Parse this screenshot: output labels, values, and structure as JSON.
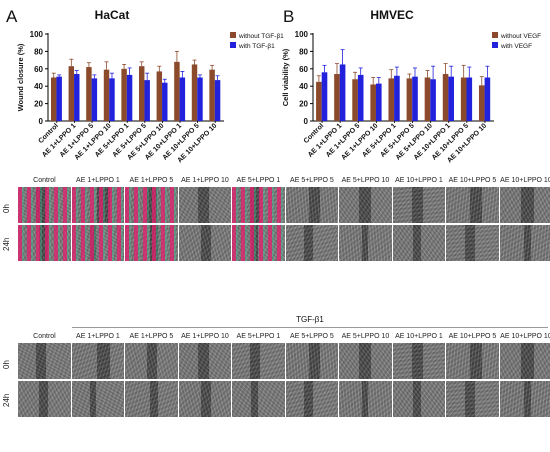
{
  "panels": {
    "A": {
      "letter": "A"
    },
    "B": {
      "letter": "B"
    }
  },
  "chart_data": [
    {
      "type": "bar",
      "title": "HaCat",
      "ylabel": "Wound closure (%)",
      "xlabel": "",
      "ylim": [
        0,
        100
      ],
      "yticks": [
        0,
        20,
        40,
        60,
        80,
        100
      ],
      "categories": [
        "Control",
        "AE 1+LPPO 1",
        "AE 1+LPPO 5",
        "AE 1+LPPO 10",
        "AE 5+LPPO 1",
        "AE 5+LPPO 5",
        "AE 5+LPPO 10",
        "AE 10+LPPO 1",
        "AE 10+LPPO 5",
        "AE 10+LPPO 10"
      ],
      "series": [
        {
          "name": "without TGF-β1",
          "color": "#8B4A2B",
          "values": [
            50,
            63,
            62,
            59,
            60,
            63,
            57,
            68,
            65,
            59
          ],
          "errors": [
            5,
            8,
            5,
            9,
            5,
            5,
            6,
            12,
            5,
            5
          ]
        },
        {
          "name": "with TGF-β1",
          "color": "#2222DD",
          "values": [
            51,
            54,
            49,
            49,
            53,
            47,
            44,
            50,
            50,
            47
          ],
          "errors": [
            2,
            4,
            4,
            6,
            8,
            8,
            4,
            7,
            3,
            5
          ]
        }
      ],
      "legend_position": "top-right",
      "grid": false
    },
    {
      "type": "bar",
      "title": "HMVEC",
      "ylabel": "Cell viability (%)",
      "xlabel": "",
      "ylim": [
        0,
        100
      ],
      "yticks": [
        0,
        20,
        40,
        60,
        80,
        100
      ],
      "categories": [
        "Control",
        "AE 1+LPPO 1",
        "AE 1+LPPO 5",
        "AE 1+LPPO 10",
        "AE 5+LPPO 1",
        "AE 5+LPPO 5",
        "AE 5+LPPO 10",
        "AE 10+LPPO 1",
        "AE 10+LPPO 5",
        "AE 10+LPPO 10"
      ],
      "series": [
        {
          "name": "without VEGF",
          "color": "#8B4A2B",
          "values": [
            45,
            54,
            48,
            42,
            49,
            49,
            50,
            54,
            50,
            41
          ],
          "errors": [
            7,
            12,
            8,
            8,
            10,
            5,
            8,
            12,
            14,
            10
          ]
        },
        {
          "name": "with VEGF",
          "color": "#2222DD",
          "values": [
            56,
            65,
            53,
            43,
            52,
            51,
            48,
            51,
            50,
            50
          ],
          "errors": [
            8,
            17,
            8,
            7,
            10,
            10,
            15,
            12,
            12,
            13
          ]
        }
      ],
      "legend_position": "top-right",
      "grid": false
    }
  ],
  "micrographs": {
    "top_columns": [
      "Control",
      "AE 1+LPPO 1",
      "AE 1+LPPO 5",
      "AE 1+LPPO 10",
      "AE 5+LPPO 1",
      "AE 5+LPPO 5",
      "AE 5+LPPO 10",
      "AE 10+LPPO 1",
      "AE 10+LPPO 5",
      "AE 10+LPPO 10"
    ],
    "bottom_columns": [
      "Control",
      "AE 1+LPPO 1",
      "AE 1+LPPO 5",
      "AE 1+LPPO 10",
      "AE 5+LPPO 1",
      "AE 5+LPPO 5",
      "AE 5+LPPO 10",
      "AE 10+LPPO 1",
      "AE 10+LPPO 5",
      "AE 10+LPPO 10"
    ],
    "rows": [
      "0h",
      "24h"
    ],
    "bottom_group_label": "TGF-β1"
  }
}
